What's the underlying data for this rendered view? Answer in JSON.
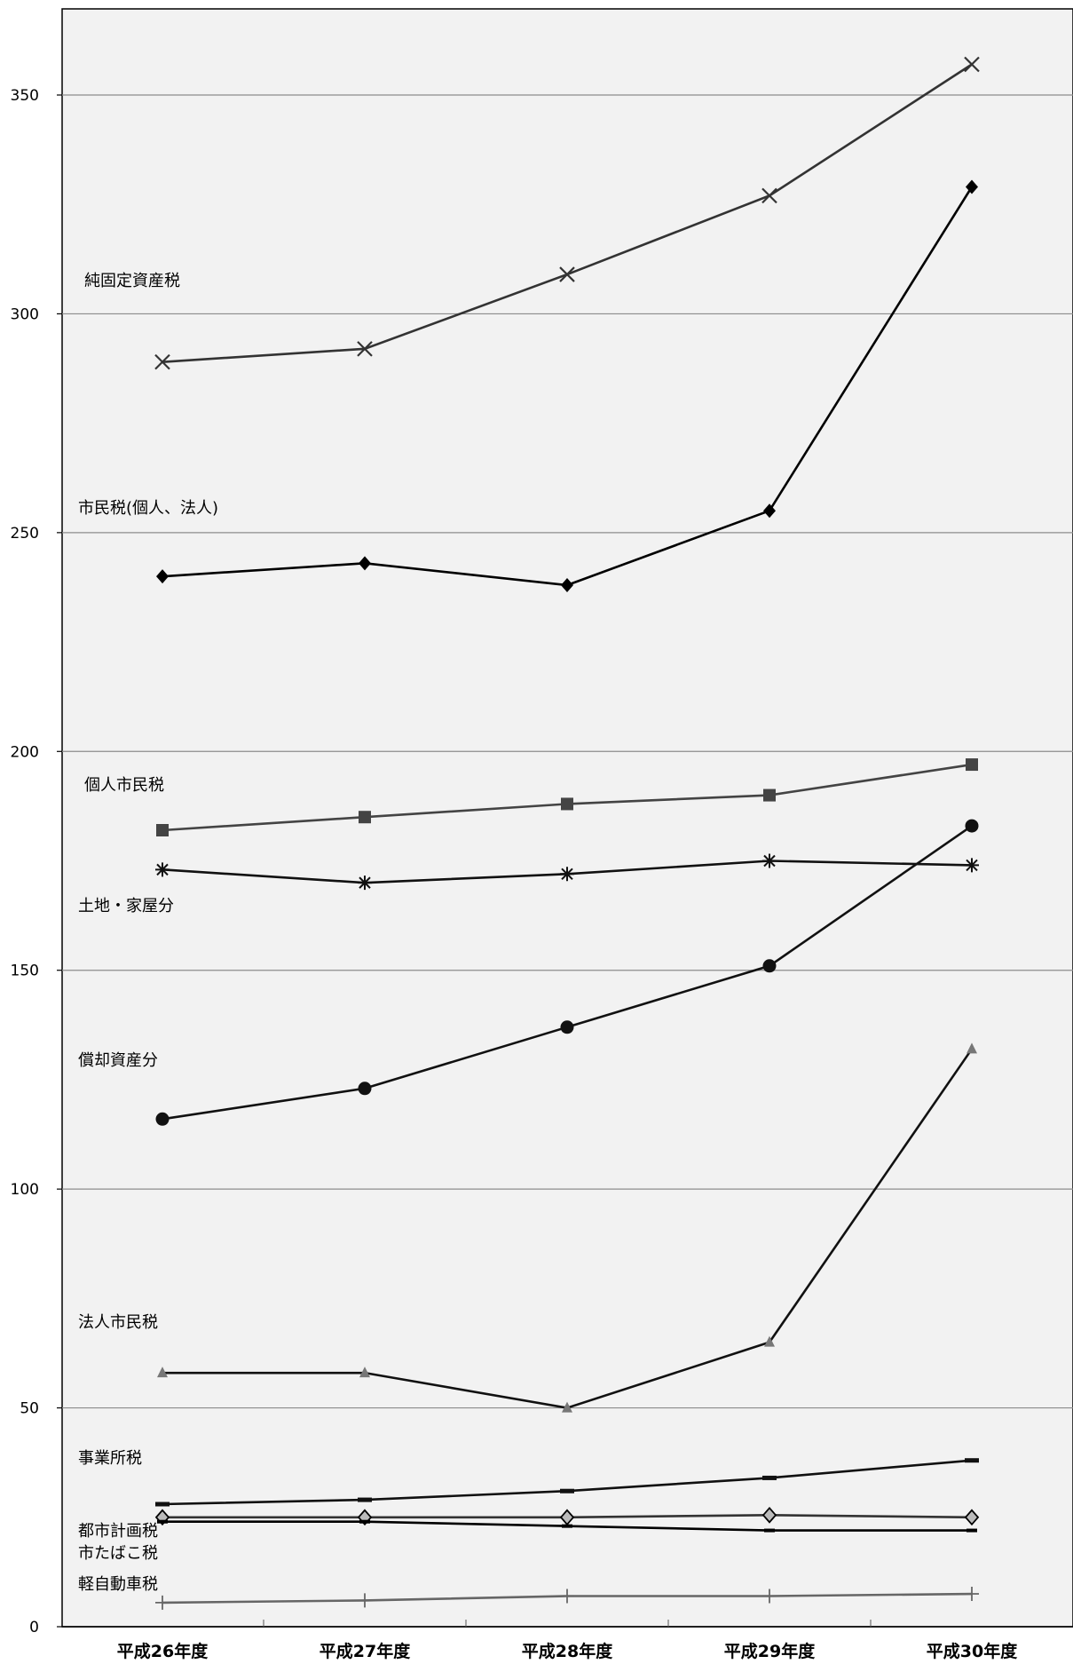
{
  "chart_data": {
    "type": "line",
    "categories": [
      "平成26年度",
      "平成27年度",
      "平成28年度",
      "平成29年度",
      "平成30年度"
    ],
    "ylim": [
      0,
      370
    ],
    "yticks": [
      0,
      50,
      100,
      150,
      200,
      250,
      300,
      350
    ],
    "grid": true,
    "series": [
      {
        "name": "純固定資産税",
        "marker": "x",
        "color": "#333333",
        "values": [
          289,
          292,
          309,
          327,
          357
        ]
      },
      {
        "name": "市民税(個人、法人)",
        "marker": "diamond",
        "color": "#000000",
        "values": [
          240,
          243,
          238,
          255,
          329
        ]
      },
      {
        "name": "個人市民税",
        "marker": "square",
        "color": "#444444",
        "values": [
          182,
          185,
          188,
          190,
          197
        ]
      },
      {
        "name": "土地・家屋分",
        "marker": "asterisk",
        "color": "#111111",
        "values": [
          173,
          170,
          172,
          175,
          174
        ]
      },
      {
        "name": "償却資産分",
        "marker": "circle",
        "color": "#111111",
        "values": [
          116,
          123,
          137,
          151,
          183
        ]
      },
      {
        "name": "法人市民税",
        "marker": "triangle",
        "color": "#111111",
        "marker_color": "#777777",
        "values": [
          58,
          58,
          50,
          65,
          132
        ]
      },
      {
        "name": "事業所税",
        "marker": "dash",
        "color": "#111111",
        "values": [
          28,
          29,
          31,
          34,
          38
        ]
      },
      {
        "name": "都市計画税",
        "marker": "diamond-open",
        "color": "#333333",
        "values": [
          25,
          25,
          25,
          25.5,
          25
        ]
      },
      {
        "name": "市たばこ税",
        "marker": "dash-small",
        "color": "#000000",
        "values": [
          24,
          24,
          23,
          22,
          22
        ]
      },
      {
        "name": "軽自動車税",
        "marker": "plus",
        "color": "#666666",
        "values": [
          5.5,
          6,
          7,
          7,
          7.5
        ]
      }
    ]
  },
  "labels": [
    {
      "text": "純固定資産税"
    },
    {
      "text": "市民税(個人、法人)"
    },
    {
      "text": "個人市民税"
    },
    {
      "text": "土地・家屋分"
    },
    {
      "text": "償却資産分"
    },
    {
      "text": "法人市民税"
    },
    {
      "text": "事業所税"
    },
    {
      "text": "都市計画税"
    },
    {
      "text": "市たばこ税"
    },
    {
      "text": "軽自動車税"
    }
  ]
}
